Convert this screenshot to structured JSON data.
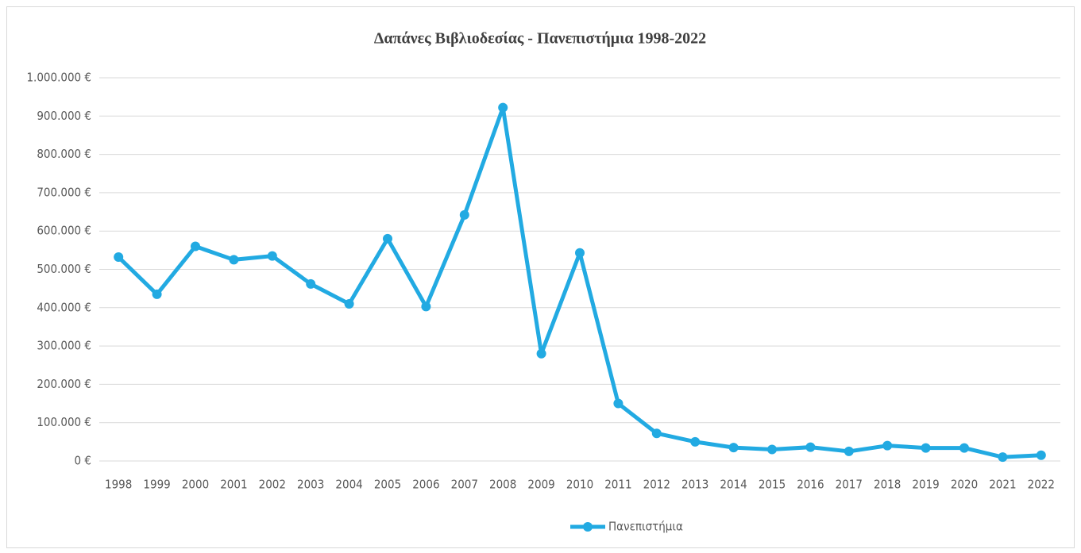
{
  "chart_data": {
    "type": "line",
    "title": "Δαπάνες Βιβλιοδεσίας - Πανεπιστήμια 1998-2022",
    "categories": [
      "1998",
      "1999",
      "2000",
      "2001",
      "2002",
      "2003",
      "2004",
      "2005",
      "2006",
      "2007",
      "2008",
      "2009",
      "2010",
      "2011",
      "2012",
      "2013",
      "2014",
      "2015",
      "2016",
      "2017",
      "2018",
      "2019",
      "2020",
      "2021",
      "2022"
    ],
    "series": [
      {
        "name": "Πανεπιστήμια",
        "color": "#22aae2",
        "values": [
          532000,
          435000,
          560000,
          525000,
          535000,
          462000,
          410000,
          580000,
          403000,
          642000,
          922000,
          280000,
          543000,
          150000,
          72000,
          50000,
          35000,
          30000,
          36000,
          25000,
          40000,
          34000,
          34000,
          10000,
          15000
        ]
      }
    ],
    "ylim": [
      0,
      1000000
    ],
    "yticks": [
      {
        "value": 0,
        "label": "0 €"
      },
      {
        "value": 100000,
        "label": "100.000 €"
      },
      {
        "value": 200000,
        "label": "200.000 €"
      },
      {
        "value": 300000,
        "label": "300.000 €"
      },
      {
        "value": 400000,
        "label": "400.000 €"
      },
      {
        "value": 500000,
        "label": "500.000 €"
      },
      {
        "value": 600000,
        "label": "600.000 €"
      },
      {
        "value": 700000,
        "label": "700.000 €"
      },
      {
        "value": 800000,
        "label": "800.000 €"
      },
      {
        "value": 900000,
        "label": "900.000 €"
      },
      {
        "value": 1000000,
        "label": "1.000.000 €"
      }
    ],
    "grid": true,
    "legend": "bottom"
  }
}
